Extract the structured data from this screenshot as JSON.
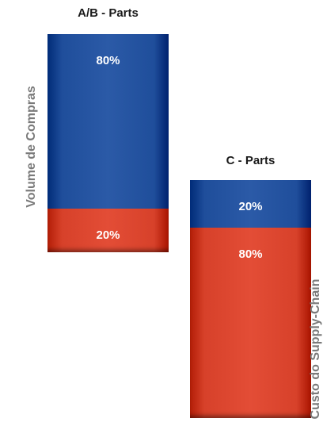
{
  "chart_data": [
    {
      "type": "bar",
      "title": "A/B - Parts",
      "ylabel": "Volume de Compras",
      "segments": [
        {
          "label": "80%",
          "value": 80,
          "color": "#1f4e9b"
        },
        {
          "label": "20%",
          "value": 20,
          "color": "#d7412a"
        }
      ]
    },
    {
      "type": "bar",
      "title": "C - Parts",
      "ylabel": "Custo do Supply-Chain",
      "segments": [
        {
          "label": "20%",
          "value": 20,
          "color": "#1f4e9b"
        },
        {
          "label": "80%",
          "value": 80,
          "color": "#d7412a"
        }
      ]
    }
  ]
}
